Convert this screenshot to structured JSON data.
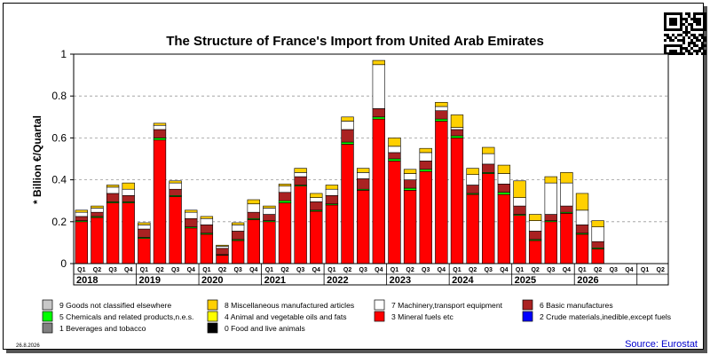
{
  "chart_data": {
    "type": "bar",
    "stacked": true,
    "title": "The Structure of France's Import from United Arab Emirates",
    "ylabel": "* Billion €/Quartal",
    "ylim": [
      0,
      1
    ],
    "yticks": [
      "0",
      "0.2",
      "0.4",
      "0.6",
      "0.8",
      "1"
    ],
    "grid": "horizontal dashed",
    "categories": [
      "Q1",
      "Q2",
      "Q3",
      "Q4",
      "Q1",
      "Q2",
      "Q3",
      "Q4",
      "Q1",
      "Q2",
      "Q3",
      "Q4",
      "Q1",
      "Q2",
      "Q3",
      "Q4",
      "Q1",
      "Q2",
      "Q3",
      "Q4",
      "Q1",
      "Q2",
      "Q3",
      "Q4",
      "Q1",
      "Q2",
      "Q3",
      "Q4",
      "Q1",
      "Q2",
      "Q3",
      "Q4",
      "Q1",
      "Q2",
      "Q3",
      "Q4",
      "Q1",
      "Q2"
    ],
    "years": [
      "2018",
      "2019",
      "2020",
      "2021",
      "2022",
      "2023",
      "2024",
      "2025",
      "2026"
    ],
    "series": [
      {
        "name": "0 Food and live animals",
        "color": "#000000",
        "values": [
          0,
          0,
          0,
          0,
          0,
          0,
          0,
          0,
          0,
          0,
          0,
          0,
          0,
          0,
          0,
          0,
          0,
          0,
          0,
          0,
          0,
          0,
          0,
          0,
          0,
          0,
          0,
          0,
          0,
          0,
          0,
          0,
          0,
          0,
          0,
          0,
          0,
          0
        ]
      },
      {
        "name": "1 Beverages and tobacco",
        "color": "#808080",
        "values": [
          0,
          0,
          0,
          0,
          0,
          0,
          0,
          0,
          0,
          0,
          0,
          0,
          0,
          0,
          0,
          0,
          0,
          0,
          0,
          0,
          0,
          0,
          0,
          0,
          0,
          0,
          0,
          0,
          0,
          0,
          0,
          0,
          0,
          0,
          0,
          0,
          0,
          0
        ]
      },
      {
        "name": "2 Crude materials,inedible,except fuels",
        "color": "#0000ff",
        "values": [
          0,
          0,
          0,
          0,
          0,
          0,
          0,
          0,
          0,
          0,
          0,
          0,
          0,
          0,
          0,
          0,
          0,
          0,
          0,
          0,
          0,
          0,
          0,
          0,
          0,
          0,
          0,
          0,
          0,
          0,
          0,
          0,
          0,
          0,
          0,
          0,
          0,
          0
        ]
      },
      {
        "name": "3 Mineral fuels etc",
        "color": "#ff0000",
        "values": [
          0.2,
          0.22,
          0.29,
          0.29,
          0.12,
          0.59,
          0.32,
          0.17,
          0.14,
          0.04,
          0.11,
          0.21,
          0.2,
          0.29,
          0.37,
          0.25,
          0.28,
          0.57,
          0.35,
          0.69,
          0.49,
          0.35,
          0.44,
          0.68,
          0.6,
          0.33,
          0.43,
          0.33,
          0.23,
          0.11,
          0.2,
          0.24,
          0.14,
          0.07,
          0,
          0,
          0,
          0
        ]
      },
      {
        "name": "4 Animal and vegetable oils and fats",
        "color": "#ffff00",
        "values": [
          0,
          0,
          0,
          0,
          0,
          0,
          0,
          0,
          0,
          0,
          0,
          0,
          0,
          0,
          0,
          0,
          0,
          0,
          0,
          0,
          0,
          0,
          0,
          0,
          0,
          0,
          0,
          0,
          0,
          0,
          0,
          0,
          0,
          0,
          0,
          0,
          0,
          0
        ]
      },
      {
        "name": "5 Chemicals and related products,n.e.s.",
        "color": "#00ff00",
        "values": [
          0.005,
          0.005,
          0.005,
          0.005,
          0.005,
          0.01,
          0.005,
          0.005,
          0.005,
          0.003,
          0.005,
          0.005,
          0.005,
          0.01,
          0.005,
          0.005,
          0.005,
          0.01,
          0.005,
          0.01,
          0.01,
          0.01,
          0.01,
          0.01,
          0.01,
          0.005,
          0.005,
          0.01,
          0.005,
          0.005,
          0.005,
          0.005,
          0.005,
          0.005,
          0,
          0,
          0,
          0
        ]
      },
      {
        "name": "6 Basic manufactures",
        "color": "#aa2222",
        "values": [
          0.02,
          0.02,
          0.04,
          0.03,
          0.04,
          0.04,
          0.03,
          0.04,
          0.04,
          0.03,
          0.04,
          0.03,
          0.03,
          0.04,
          0.04,
          0.04,
          0.04,
          0.06,
          0.05,
          0.04,
          0.03,
          0.04,
          0.04,
          0.04,
          0.03,
          0.04,
          0.04,
          0.04,
          0.04,
          0.04,
          0.03,
          0.03,
          0.04,
          0.03,
          0,
          0,
          0,
          0
        ]
      },
      {
        "name": "7 Machinery,transport equipment",
        "color": "#ffffff",
        "values": [
          0.02,
          0.02,
          0.03,
          0.03,
          0.02,
          0.02,
          0.03,
          0.03,
          0.03,
          0.01,
          0.03,
          0.04,
          0.03,
          0.03,
          0.02,
          0.02,
          0.03,
          0.04,
          0.03,
          0.21,
          0.03,
          0.03,
          0.04,
          0.02,
          0.01,
          0.05,
          0.05,
          0.05,
          0.04,
          0.05,
          0.15,
          0.11,
          0.07,
          0.07,
          0,
          0,
          0,
          0
        ]
      },
      {
        "name": "8 Miscellaneous manufactured articles",
        "color": "#ffd000",
        "values": [
          0.01,
          0.01,
          0.01,
          0.03,
          0.01,
          0.01,
          0.01,
          0.01,
          0.01,
          0.005,
          0.01,
          0.02,
          0.01,
          0.01,
          0.02,
          0.02,
          0.02,
          0.02,
          0.02,
          0.02,
          0.04,
          0.02,
          0.02,
          0.02,
          0.06,
          0.03,
          0.03,
          0.04,
          0.08,
          0.03,
          0.03,
          0.05,
          0.08,
          0.03,
          0,
          0,
          0,
          0
        ]
      },
      {
        "name": "9 Goods not classified elsewhere",
        "color": "#c8c8c8",
        "values": [
          0,
          0,
          0,
          0,
          0,
          0,
          0,
          0,
          0,
          0,
          0,
          0,
          0,
          0,
          0,
          0,
          0,
          0,
          0,
          0,
          0,
          0,
          0,
          0,
          0,
          0,
          0,
          0,
          0,
          0,
          0,
          0,
          0,
          0,
          0,
          0,
          0,
          0
        ]
      }
    ],
    "legend_order": [
      9,
      8,
      7,
      6,
      5,
      4,
      3,
      2,
      1,
      0
    ],
    "legend_position": "bottom"
  },
  "footer": {
    "date": "26.8.2026",
    "source": "Source: Eurostat"
  },
  "qr_icon": "qr-code-icon"
}
